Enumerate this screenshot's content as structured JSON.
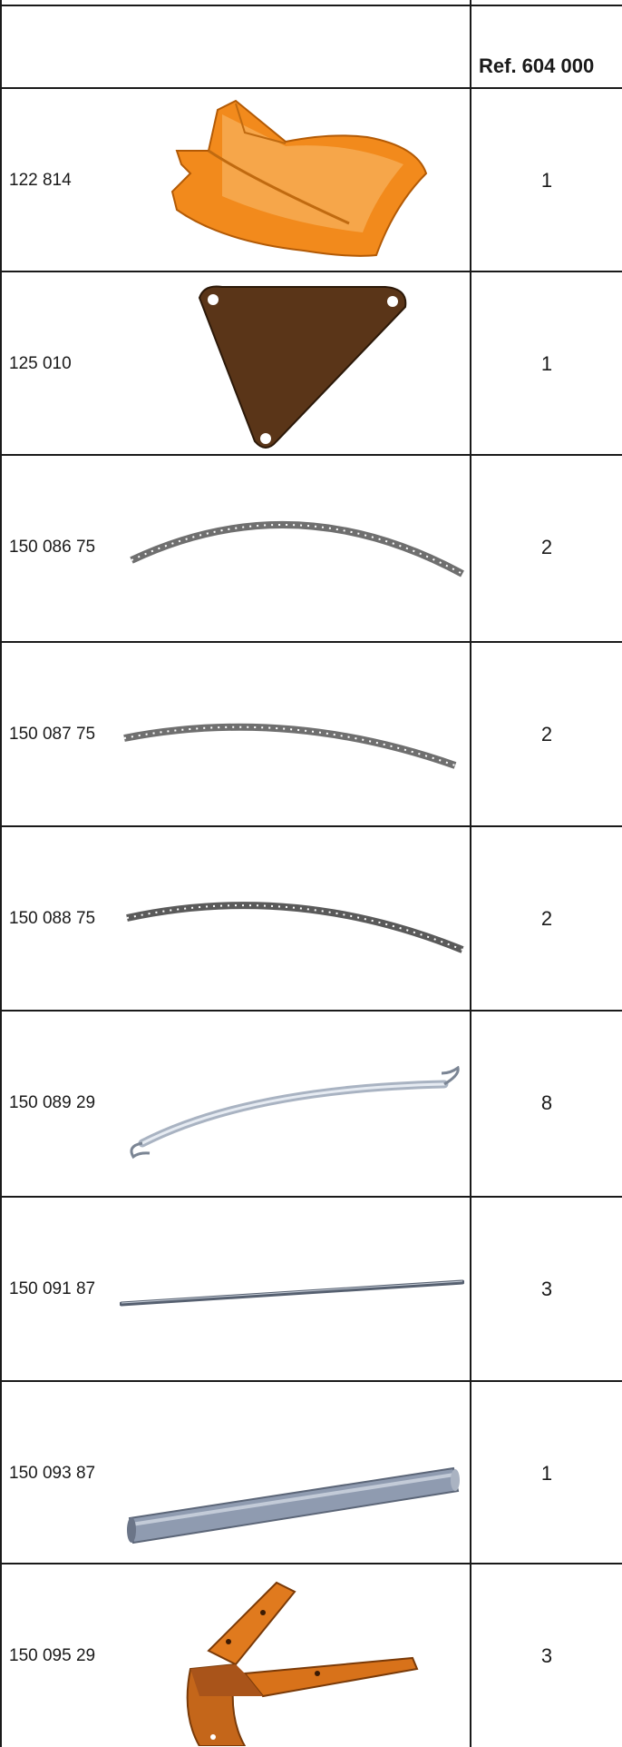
{
  "header": {
    "ref_label": "Ref. 604 000"
  },
  "rows": [
    {
      "code": "122 814",
      "qty": "1",
      "part_icon": "orange-molded-seat-part-icon"
    },
    {
      "code": "125 010",
      "qty": "1",
      "part_icon": "brown-triangular-plate-icon"
    },
    {
      "code": "150 086 75",
      "qty": "2",
      "part_icon": "perforated-curved-rail-icon"
    },
    {
      "code": "150 087 75",
      "qty": "2",
      "part_icon": "perforated-curved-rail-icon"
    },
    {
      "code": "150 088 75",
      "qty": "2",
      "part_icon": "perforated-curved-rail-icon"
    },
    {
      "code": "150 089 29",
      "qty": "8",
      "part_icon": "curved-tube-with-hooks-icon"
    },
    {
      "code": "150 091 87",
      "qty": "3",
      "part_icon": "thin-straight-rod-icon"
    },
    {
      "code": "150 093 87",
      "qty": "1",
      "part_icon": "straight-tube-icon"
    },
    {
      "code": "150 095 29",
      "qty": "3",
      "part_icon": "orange-bracket-icon"
    }
  ]
}
